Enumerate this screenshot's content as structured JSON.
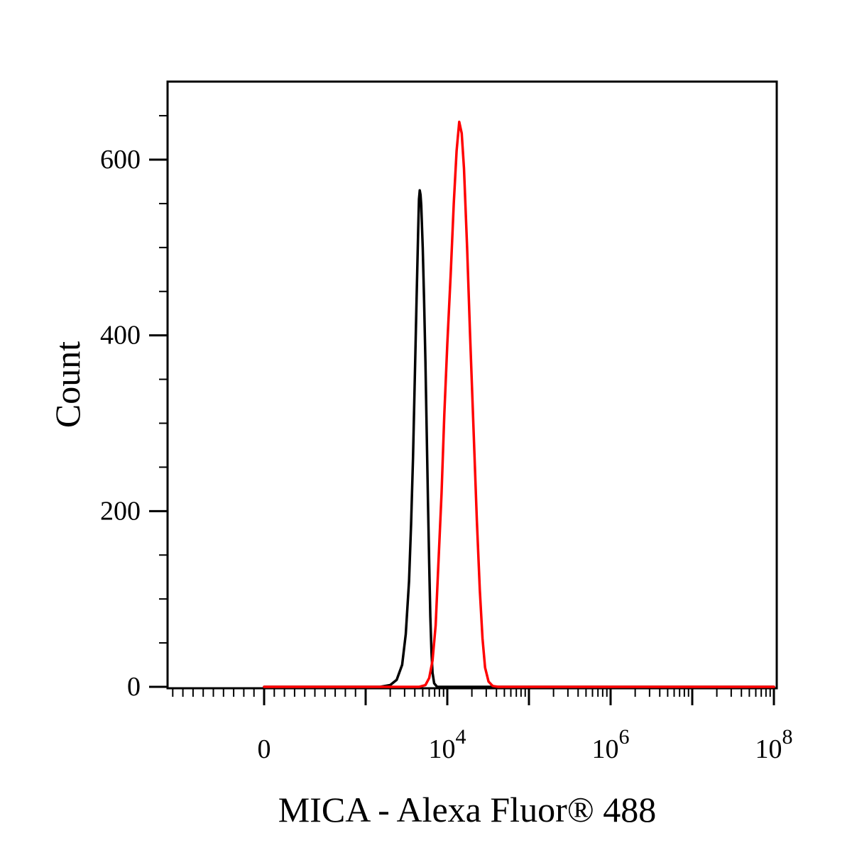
{
  "chart_data": {
    "type": "line",
    "title": "",
    "xlabel": "MICA - Alexa Fluor® 488",
    "ylabel": "Count",
    "xscale": "biexponential",
    "ylim": [
      0,
      690
    ],
    "grid": false,
    "legend": "none",
    "x_tick_labels": [
      {
        "base": "0",
        "exp": "",
        "value": 0
      },
      {
        "base": "10",
        "exp": "4",
        "value": 10000
      },
      {
        "base": "10",
        "exp": "6",
        "value": 1000000
      },
      {
        "base": "10",
        "exp": "8",
        "value": 100000000
      }
    ],
    "y_ticks": [
      0,
      200,
      400,
      600
    ],
    "y_tick_labels": [
      "0",
      "200",
      "400",
      "600"
    ],
    "series": [
      {
        "color": "#000000",
        "points": [
          [
            0,
            0
          ],
          [
            1500,
            0
          ],
          [
            2000,
            2
          ],
          [
            2400,
            8
          ],
          [
            2800,
            25
          ],
          [
            3100,
            60
          ],
          [
            3400,
            120
          ],
          [
            3600,
            185
          ],
          [
            3800,
            260
          ],
          [
            4000,
            350
          ],
          [
            4200,
            440
          ],
          [
            4400,
            520
          ],
          [
            4500,
            555
          ],
          [
            4600,
            565
          ],
          [
            4700,
            560
          ],
          [
            4800,
            548
          ],
          [
            5000,
            500
          ],
          [
            5200,
            440
          ],
          [
            5400,
            370
          ],
          [
            5600,
            290
          ],
          [
            5800,
            210
          ],
          [
            6000,
            140
          ],
          [
            6200,
            80
          ],
          [
            6400,
            40
          ],
          [
            6600,
            16
          ],
          [
            6900,
            4
          ],
          [
            7500,
            0
          ],
          [
            100000000,
            0
          ]
        ]
      },
      {
        "color": "#ff0000",
        "points": [
          [
            0,
            0
          ],
          [
            4500,
            0
          ],
          [
            5400,
            2
          ],
          [
            6000,
            10
          ],
          [
            6600,
            30
          ],
          [
            7200,
            70
          ],
          [
            7700,
            130
          ],
          [
            8500,
            220
          ],
          [
            9200,
            310
          ],
          [
            10000,
            390
          ],
          [
            11000,
            470
          ],
          [
            12000,
            550
          ],
          [
            13000,
            610
          ],
          [
            14000,
            643
          ],
          [
            15000,
            630
          ],
          [
            16000,
            590
          ],
          [
            17500,
            500
          ],
          [
            19000,
            400
          ],
          [
            21000,
            290
          ],
          [
            23000,
            190
          ],
          [
            25000,
            110
          ],
          [
            27000,
            55
          ],
          [
            29000,
            22
          ],
          [
            32000,
            6
          ],
          [
            36000,
            1
          ],
          [
            42000,
            0
          ],
          [
            100000000,
            0
          ]
        ]
      }
    ]
  }
}
